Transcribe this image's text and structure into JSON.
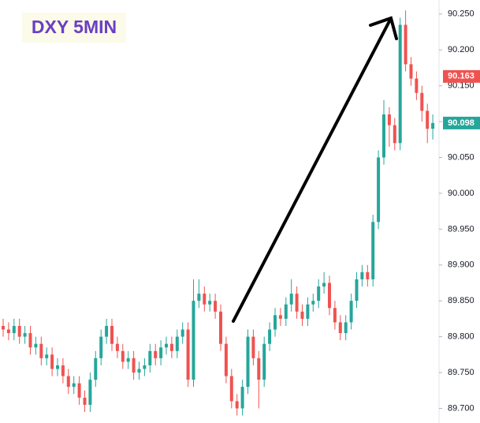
{
  "chart_data": {
    "type": "candlestick",
    "title": "DXY 5MIN",
    "up_color": "#26a69a",
    "down_color": "#ef5350",
    "open": [
      89.815,
      89.81,
      89.805,
      89.815,
      89.8,
      89.805,
      89.785,
      89.79,
      89.77,
      89.775,
      89.755,
      89.76,
      89.745,
      89.73,
      89.735,
      89.715,
      89.705,
      89.74,
      89.77,
      89.8,
      89.815,
      89.79,
      89.78,
      89.765,
      89.77,
      89.75,
      89.755,
      89.76,
      89.78,
      89.77,
      89.785,
      89.79,
      89.78,
      89.8,
      89.81,
      89.74,
      89.85,
      89.86,
      89.845,
      89.85,
      89.835,
      89.79,
      89.745,
      89.71,
      89.7,
      89.73,
      89.8,
      89.77,
      89.74,
      89.79,
      89.81,
      89.83,
      89.825,
      89.845,
      89.86,
      89.835,
      89.825,
      89.845,
      89.85,
      89.87,
      89.875,
      89.84,
      89.82,
      89.805,
      89.82,
      89.85,
      89.88,
      89.89,
      89.88,
      89.96,
      90.05,
      90.11,
      90.095,
      90.07,
      90.235,
      90.18,
      90.16,
      90.14,
      90.115,
      90.09
    ],
    "high": [
      89.825,
      89.82,
      89.825,
      89.825,
      89.815,
      89.815,
      89.8,
      89.8,
      89.785,
      89.785,
      89.77,
      89.77,
      89.755,
      89.745,
      89.745,
      89.725,
      89.75,
      89.78,
      89.81,
      89.825,
      89.825,
      89.8,
      89.79,
      89.78,
      89.78,
      89.765,
      89.77,
      89.79,
      89.79,
      89.795,
      89.8,
      89.8,
      89.81,
      89.82,
      89.82,
      89.88,
      89.88,
      89.87,
      89.86,
      89.86,
      89.845,
      89.8,
      89.755,
      89.72,
      89.74,
      89.81,
      89.81,
      89.78,
      89.8,
      89.82,
      89.84,
      89.84,
      89.855,
      89.88,
      89.87,
      89.845,
      89.855,
      89.86,
      89.88,
      89.89,
      89.885,
      89.85,
      89.83,
      89.83,
      89.86,
      89.89,
      89.9,
      89.9,
      89.97,
      90.06,
      90.13,
      90.12,
      90.105,
      90.245,
      90.255,
      90.19,
      90.17,
      90.15,
      90.125,
      90.11
    ],
    "low": [
      89.8,
      89.795,
      89.795,
      89.79,
      89.79,
      89.775,
      89.775,
      89.76,
      89.76,
      89.745,
      89.745,
      89.735,
      89.72,
      89.72,
      89.705,
      89.695,
      89.695,
      89.73,
      89.76,
      89.79,
      89.78,
      89.77,
      89.755,
      89.755,
      89.74,
      89.74,
      89.745,
      89.75,
      89.76,
      89.76,
      89.775,
      89.77,
      89.77,
      89.79,
      89.73,
      89.73,
      89.84,
      89.835,
      89.835,
      89.825,
      89.78,
      89.735,
      89.7,
      89.69,
      89.69,
      89.72,
      89.76,
      89.7,
      89.73,
      89.78,
      89.8,
      89.815,
      89.815,
      89.835,
      89.825,
      89.815,
      89.815,
      89.835,
      89.84,
      89.86,
      89.83,
      89.81,
      89.795,
      89.795,
      89.81,
      89.84,
      89.87,
      89.87,
      89.87,
      89.95,
      90.04,
      90.065,
      90.06,
      90.06,
      90.17,
      90.15,
      90.13,
      90.1,
      90.07,
      90.075
    ],
    "close": [
      89.81,
      89.805,
      89.815,
      89.8,
      89.805,
      89.785,
      89.79,
      89.77,
      89.775,
      89.755,
      89.76,
      89.745,
      89.73,
      89.735,
      89.715,
      89.705,
      89.74,
      89.77,
      89.8,
      89.815,
      89.79,
      89.78,
      89.765,
      89.77,
      89.75,
      89.755,
      89.76,
      89.78,
      89.77,
      89.785,
      89.79,
      89.78,
      89.8,
      89.81,
      89.74,
      89.85,
      89.86,
      89.845,
      89.85,
      89.835,
      89.79,
      89.745,
      89.71,
      89.7,
      89.73,
      89.8,
      89.77,
      89.74,
      89.79,
      89.81,
      89.83,
      89.825,
      89.845,
      89.86,
      89.835,
      89.825,
      89.845,
      89.85,
      89.87,
      89.875,
      89.84,
      89.82,
      89.805,
      89.82,
      89.85,
      89.88,
      89.89,
      89.88,
      89.96,
      90.05,
      90.11,
      90.095,
      90.07,
      90.235,
      90.18,
      90.16,
      90.14,
      90.115,
      90.09,
      90.098
    ],
    "ylim": [
      89.6796,
      90.2696
    ],
    "yticks": [
      {
        "value": 89.7,
        "label": "89.700"
      },
      {
        "value": 89.75,
        "label": "89.750"
      },
      {
        "value": 89.8,
        "label": "89.800"
      },
      {
        "value": 89.85,
        "label": "89.850"
      },
      {
        "value": 89.9,
        "label": "89.900"
      },
      {
        "value": 89.95,
        "label": "89.950"
      },
      {
        "value": 90.0,
        "label": "90.000"
      },
      {
        "value": 90.05,
        "label": "90.050"
      },
      {
        "value": 90.1,
        "label": "90.100"
      },
      {
        "value": 90.15,
        "label": "90.150"
      },
      {
        "value": 90.2,
        "label": "90.200"
      },
      {
        "value": 90.25,
        "label": "90.250"
      }
    ],
    "price_tags": [
      {
        "value": 90.163,
        "label": "90.163",
        "color": "#ef5350"
      },
      {
        "value": 90.098,
        "label": "90.098",
        "color": "#26a69a"
      }
    ]
  }
}
